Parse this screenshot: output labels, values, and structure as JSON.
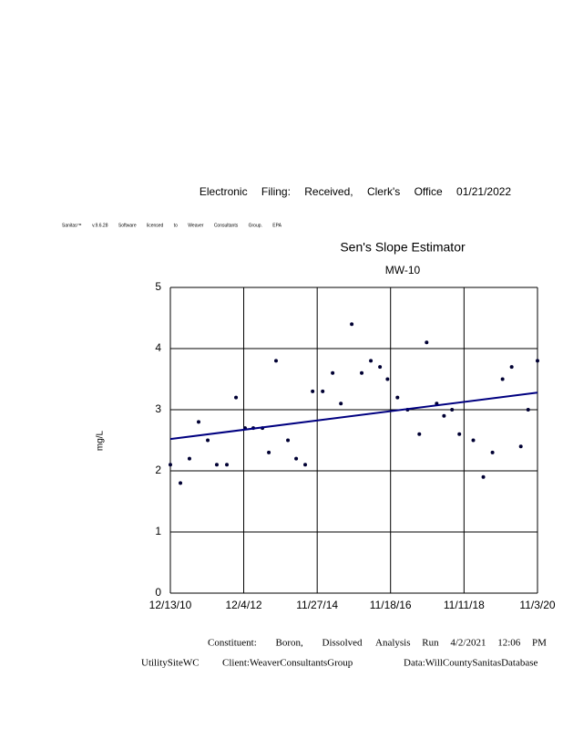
{
  "header": {
    "filing": "Electronic Filing: Received, Clerk's Office 01/21/2022",
    "software": "Sanitas™ v.9.6.28 Software licensed to Weaver Consultants Group. EPA"
  },
  "chart_data": {
    "type": "scatter",
    "title": "Sen's Slope Estimator",
    "subtitle": "MW-10",
    "y_label": "mg/L",
    "xlim": [
      "12/13/10",
      "11/3/20"
    ],
    "xticks": [
      "12/13/10",
      "12/4/12",
      "11/27/14",
      "11/18/16",
      "11/11/18",
      "11/3/20"
    ],
    "ylim": [
      0,
      5
    ],
    "yticks": [
      0,
      1,
      2,
      3,
      4,
      5
    ],
    "grid": true,
    "series": [
      {
        "name": "MW-10",
        "color": "#000033",
        "x": [
          "12/13/10",
          "3/22/11",
          "6/19/11",
          "9/17/11",
          "12/16/11",
          "3/14/12",
          "6/21/12",
          "9/19/12",
          "12/17/12",
          "3/8/13",
          "6/6/13",
          "8/8/13",
          "10/18/13",
          "2/12/14",
          "5/4/14",
          "8/1/14",
          "10/13/14",
          "1/20/15",
          "4/28/15",
          "7/18/15",
          "11/2/15",
          "2/8/16",
          "5/8/16",
          "8/6/16",
          "10/19/16",
          "1/25/17",
          "5/4/17",
          "8/28/17",
          "11/8/17",
          "2/15/18",
          "4/28/18",
          "7/16/18",
          "9/26/18",
          "2/10/19",
          "5/20/19",
          "8/18/19",
          "11/25/19",
          "2/23/20",
          "5/23/20",
          "8/3/20",
          "11/3/20"
        ],
        "values": [
          2.1,
          1.8,
          2.2,
          2.8,
          2.5,
          2.1,
          2.1,
          3.2,
          2.7,
          2.7,
          2.7,
          2.3,
          3.8,
          2.5,
          2.2,
          2.1,
          3.3,
          3.3,
          3.6,
          3.1,
          4.4,
          3.6,
          3.8,
          3.7,
          3.5,
          3.2,
          3.0,
          2.6,
          4.1,
          3.1,
          2.9,
          3.0,
          2.6,
          2.5,
          1.9,
          2.3,
          3.5,
          3.7,
          2.4,
          3.0,
          3.8
        ]
      }
    ],
    "trend": {
      "color": "#000080",
      "x": [
        "12/13/10",
        "11/3/20"
      ],
      "values": [
        2.52,
        3.28
      ]
    }
  },
  "footer": {
    "constituent": "Constituent: Boron, Dissolved",
    "analysis": "Analysis Run 4/2/2021 12:06 PM",
    "site": "UtilitySiteWC",
    "client": "Client:WeaverConsultantsGroup",
    "database": "Data:WillCountySanitasDatabase"
  }
}
